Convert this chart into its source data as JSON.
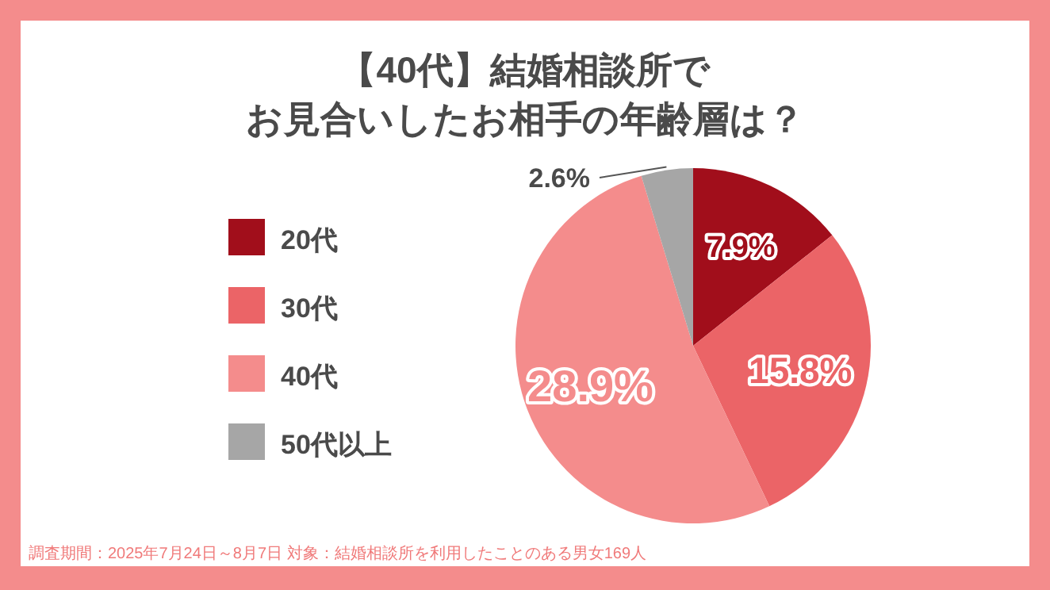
{
  "chart_data": {
    "type": "pie",
    "title": "【40代】結婚相談所でお見合いしたお相手の年齢層は？",
    "categories": [
      "20代",
      "30代",
      "40代",
      "50代以上"
    ],
    "values": [
      7.9,
      15.8,
      28.9,
      2.6
    ],
    "value_labels": [
      "7.9%",
      "15.8%",
      "28.9%",
      "2.6%"
    ],
    "colors": [
      "#a10e1b",
      "#eb6467",
      "#f48c8c",
      "#a6a6a6"
    ],
    "legend": "left",
    "annotations": [
      "調査期間：2025年7月24日～8月7日  対象：結婚相談所を利用したことのある男女169人"
    ]
  }
}
